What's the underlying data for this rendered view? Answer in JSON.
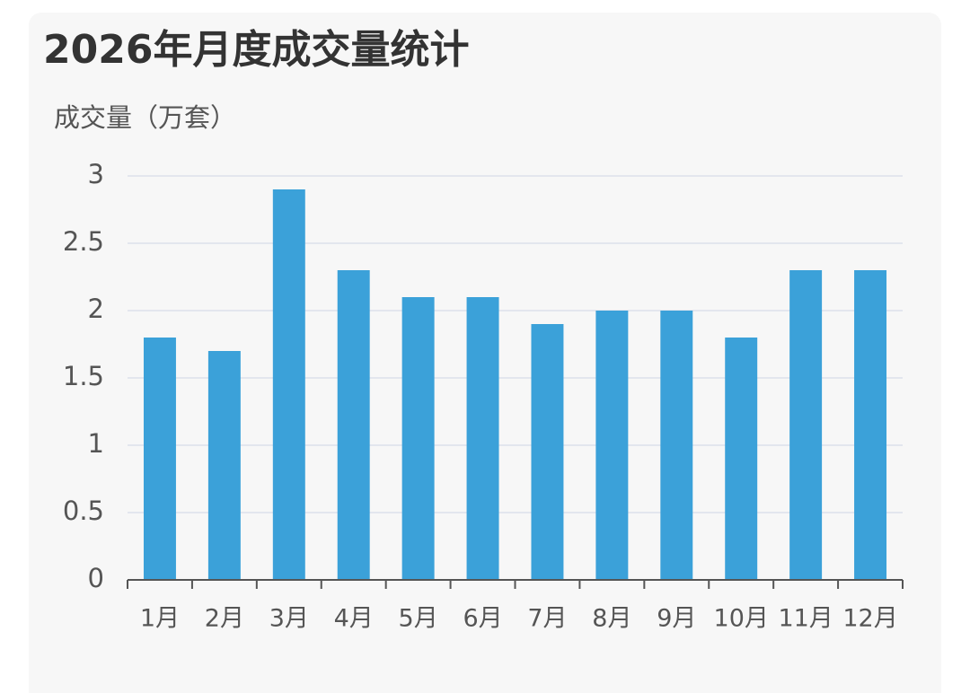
{
  "chart_data": {
    "type": "bar",
    "title": "2026年月度成交量统计",
    "y_label": "成交量（万套）",
    "categories": [
      "1月",
      "2月",
      "3月",
      "4月",
      "5月",
      "6月",
      "7月",
      "8月",
      "9月",
      "10月",
      "11月",
      "12月"
    ],
    "values": [
      1.8,
      1.7,
      2.9,
      2.3,
      2.1,
      2.1,
      1.9,
      2.0,
      2.0,
      1.8,
      2.3,
      2.3
    ],
    "color": "#3ba1d9",
    "ylim": [
      0,
      3
    ],
    "yticks": [
      0,
      0.5,
      1,
      1.5,
      2,
      2.5,
      3
    ],
    "grid": true
  }
}
